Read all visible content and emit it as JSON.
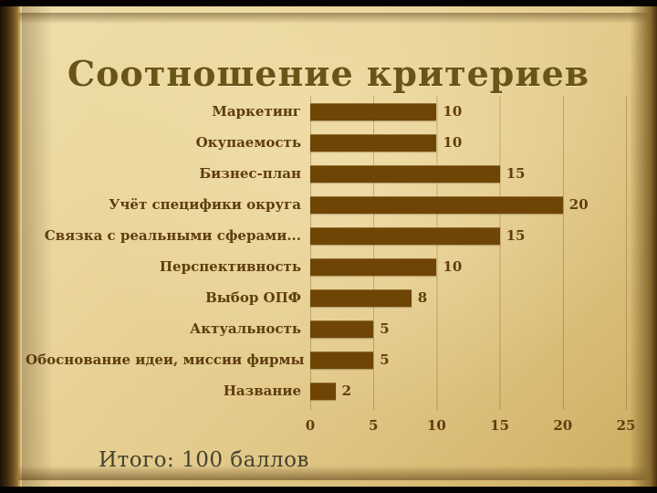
{
  "slide": {
    "title": "Соотношение критериев",
    "footer": "Итого: 100 баллов"
  },
  "colors": {
    "bar": "#6e4505",
    "label": "#5f3d0e",
    "title": "#6a5519",
    "page": "#e7d096"
  },
  "chart_data": {
    "type": "bar",
    "orientation": "horizontal",
    "title": "Соотношение критериев",
    "categories": [
      "Маркетинг",
      "Окупаемость",
      "Бизнес-план",
      "Учёт специфики округа",
      "Связка с реальными сферами...",
      "Перспективность",
      "Выбор ОПФ",
      "Актуальность",
      "Обоснование идеи, миссии фирмы",
      "Название"
    ],
    "values": [
      10,
      10,
      15,
      20,
      15,
      10,
      8,
      5,
      5,
      2
    ],
    "xlabel": "",
    "ylabel": "",
    "xlim": [
      0,
      25
    ],
    "xticks": [
      0,
      5,
      10,
      15,
      20,
      25
    ],
    "grid": true,
    "legend": false,
    "data_label_position": "outside-end",
    "annotation_total": "Итого: 100 баллов"
  }
}
